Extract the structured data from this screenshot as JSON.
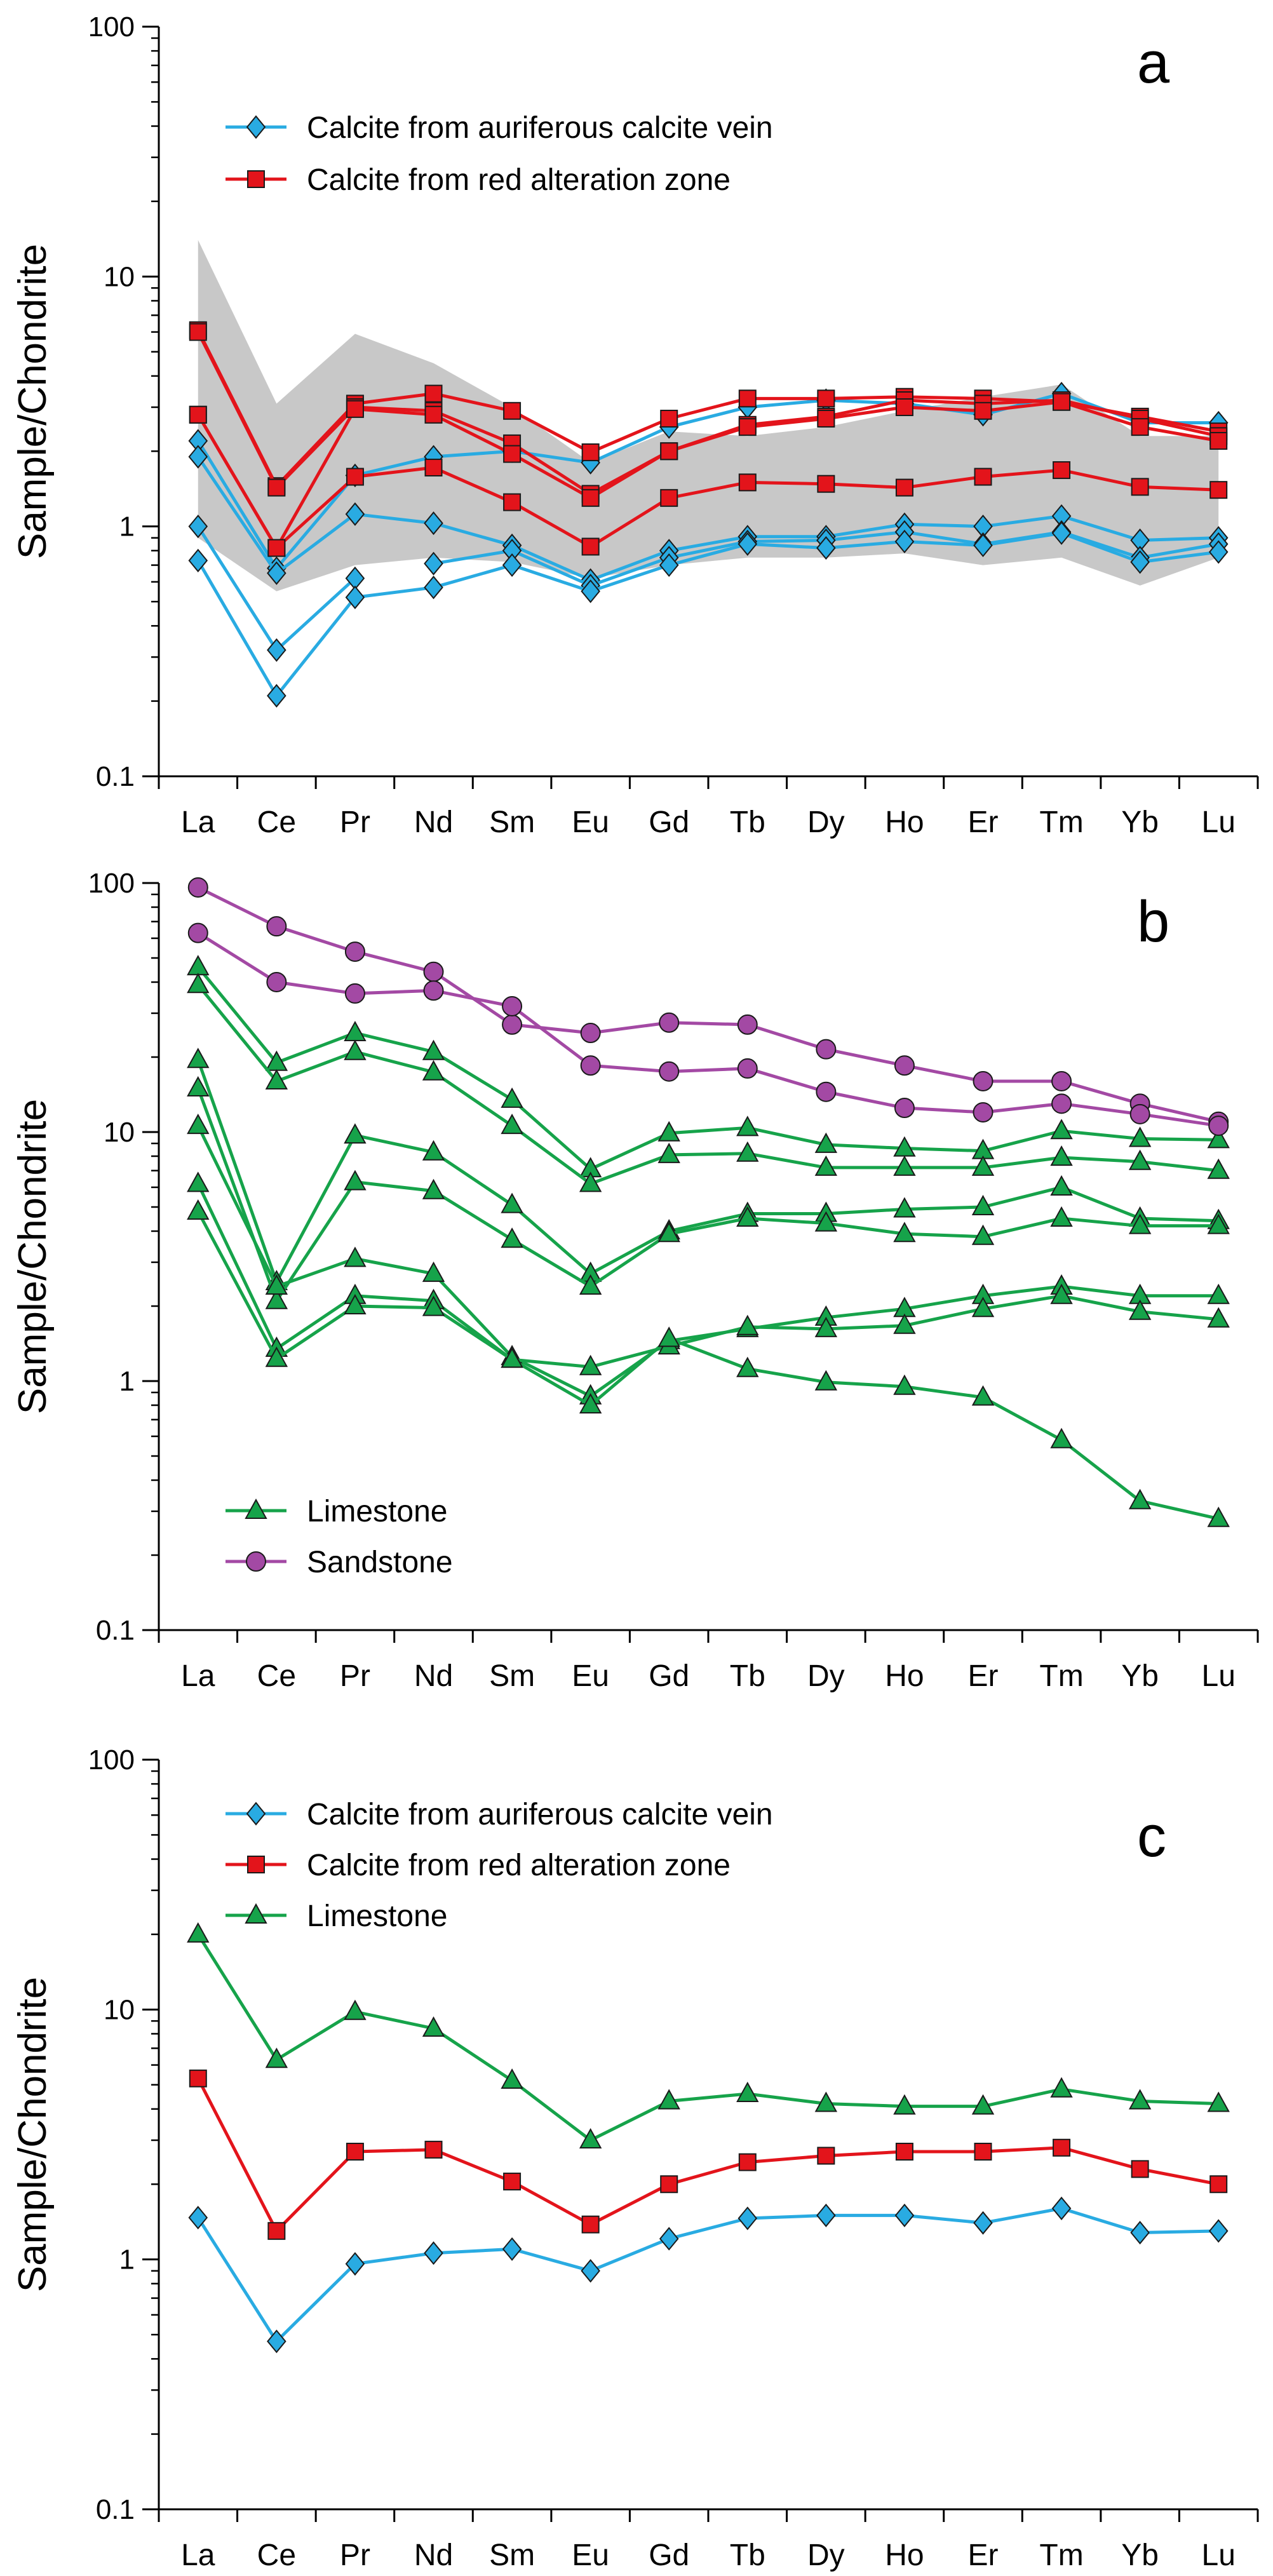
{
  "figure": {
    "panel_ids": [
      "a",
      "b",
      "c"
    ]
  },
  "styles": {
    "vein": {
      "line_color": "#29abe2",
      "marker_fill": "#29abe2",
      "marker": "diamond"
    },
    "red": {
      "line_color": "#e3141b",
      "marker_fill": "#e3141b",
      "marker": "square"
    },
    "limestone": {
      "line_color": "#16a34a",
      "marker_fill": "#16a34a",
      "marker": "triangle"
    },
    "sandstone": {
      "line_color": "#a349a4",
      "marker_fill": "#a349a4",
      "marker": "circle"
    },
    "envelope_color": "#c8c8c8"
  },
  "chart_data": [
    {
      "id": "a",
      "type": "line",
      "yscale": "log",
      "ylim": [
        0.1,
        100
      ],
      "ylabel": "Sample/Chondrite",
      "xlabel": "",
      "panel_label": "a",
      "y_tick_labels": [
        "0.1",
        "1",
        "10",
        "100"
      ],
      "categories": [
        "La",
        "Ce",
        "Pr",
        "Nd",
        "Sm",
        "Eu",
        "Gd",
        "Tb",
        "Dy",
        "Ho",
        "Er",
        "Tm",
        "Yb",
        "Lu"
      ],
      "legend": {
        "position": "top-left",
        "entries": [
          {
            "label": "Calcite from auriferous calcite vein",
            "style": "vein"
          },
          {
            "label": "Calcite from red alteration zone",
            "style": "red"
          }
        ]
      },
      "envelope": {
        "upper": [
          14,
          3.1,
          5.9,
          4.5,
          3.0,
          1.8,
          2.4,
          2.3,
          2.5,
          2.9,
          3.3,
          3.7,
          2.3,
          2.3
        ],
        "lower": [
          0.9,
          0.55,
          0.7,
          0.75,
          0.72,
          0.62,
          0.7,
          0.75,
          0.75,
          0.78,
          0.7,
          0.75,
          0.58,
          0.75
        ]
      },
      "series": [
        {
          "name": "vein-1",
          "style": "vein",
          "values": [
            2.2,
            0.68,
            1.6,
            1.9,
            2.0,
            1.8,
            2.5,
            3.0,
            3.2,
            3.1,
            2.8,
            3.4,
            2.6,
            2.6
          ]
        },
        {
          "name": "vein-2",
          "style": "vein",
          "values": [
            1.9,
            0.65,
            1.12,
            1.03,
            0.84,
            0.61,
            0.8,
            0.91,
            0.91,
            1.02,
            1.0,
            1.1,
            0.88,
            0.9
          ]
        },
        {
          "name": "vein-3",
          "style": "vein",
          "values": [
            1.0,
            0.32,
            0.62,
            null,
            null,
            null,
            null,
            null,
            null,
            null,
            null,
            null,
            null,
            null
          ]
        },
        {
          "name": "vein-4",
          "style": "vein",
          "values": [
            null,
            null,
            null,
            0.71,
            0.8,
            0.58,
            0.75,
            0.87,
            0.88,
            0.95,
            0.85,
            0.95,
            0.75,
            0.85
          ]
        },
        {
          "name": "vein-5",
          "style": "vein",
          "values": [
            0.73,
            0.21,
            0.52,
            0.57,
            0.7,
            0.55,
            0.7,
            0.85,
            0.82,
            0.87,
            0.84,
            0.94,
            0.72,
            0.79
          ]
        },
        {
          "name": "red-1",
          "style": "red",
          "values": [
            6.1,
            1.45,
            3.1,
            3.4,
            2.9,
            1.98,
            2.7,
            3.25,
            3.25,
            3.3,
            3.25,
            3.15,
            2.75,
            2.4
          ]
        },
        {
          "name": "red-2",
          "style": "red",
          "values": [
            6.0,
            1.43,
            3.0,
            2.9,
            2.15,
            1.35,
            2.0,
            2.55,
            2.75,
            3.2,
            3.1,
            3.2,
            2.7,
            2.3
          ]
        },
        {
          "name": "red-3",
          "style": "red",
          "values": [
            2.8,
            0.82,
            2.95,
            2.8,
            1.95,
            1.3,
            2.0,
            2.5,
            2.7,
            3.0,
            2.9,
            3.15,
            2.5,
            2.2
          ]
        },
        {
          "name": "red-4",
          "style": "red",
          "values": [
            2.8,
            0.82,
            1.58,
            1.72,
            1.25,
            0.83,
            1.3,
            1.5,
            1.48,
            1.43,
            1.58,
            1.68,
            1.44,
            1.4
          ]
        }
      ]
    },
    {
      "id": "b",
      "type": "line",
      "yscale": "log",
      "ylim": [
        0.1,
        100
      ],
      "ylabel": "Sample/Chondrite",
      "xlabel": "",
      "panel_label": "b",
      "y_tick_labels": [
        "0.1",
        "1",
        "10",
        "100"
      ],
      "categories": [
        "La",
        "Ce",
        "Pr",
        "Nd",
        "Sm",
        "Eu",
        "Gd",
        "Tb",
        "Dy",
        "Ho",
        "Er",
        "Tm",
        "Yb",
        "Lu"
      ],
      "legend": {
        "position": "bottom-left",
        "entries": [
          {
            "label": "Limestone",
            "style": "limestone"
          },
          {
            "label": "Sandstone",
            "style": "sandstone"
          }
        ]
      },
      "series": [
        {
          "name": "ls-1",
          "style": "limestone",
          "values": [
            46,
            19,
            25,
            21,
            13.5,
            7.1,
            9.9,
            10.4,
            8.9,
            8.6,
            8.4,
            10.1,
            9.4,
            9.3
          ]
        },
        {
          "name": "ls-2",
          "style": "limestone",
          "values": [
            39,
            16,
            21,
            17.4,
            10.6,
            6.2,
            8.1,
            8.2,
            7.2,
            7.2,
            7.2,
            7.9,
            7.6,
            7.0
          ]
        },
        {
          "name": "ls-3",
          "style": "limestone",
          "values": [
            19.5,
            2.5,
            9.7,
            8.3,
            5.1,
            2.7,
            4.0,
            4.7,
            4.7,
            4.9,
            5.0,
            6.0,
            4.5,
            4.4
          ]
        },
        {
          "name": "ls-4",
          "style": "limestone",
          "values": [
            15,
            2.1,
            6.3,
            5.8,
            3.7,
            2.4,
            3.9,
            4.5,
            4.3,
            3.9,
            3.8,
            4.5,
            4.2,
            4.2
          ]
        },
        {
          "name": "ls-5",
          "style": "limestone",
          "values": [
            10.6,
            2.4,
            3.1,
            2.7,
            1.25,
            0.87,
            1.45,
            1.62,
            1.8,
            1.95,
            2.2,
            2.4,
            2.2,
            2.2
          ]
        },
        {
          "name": "ls-6",
          "style": "limestone",
          "values": [
            6.2,
            1.35,
            2.2,
            2.1,
            1.22,
            1.14,
            1.38,
            1.65,
            1.62,
            1.67,
            1.95,
            2.2,
            1.9,
            1.77
          ]
        },
        {
          "name": "ls-7",
          "style": "limestone",
          "values": [
            4.8,
            1.23,
            2.0,
            1.97,
            1.22,
            0.8,
            1.48,
            1.12,
            0.99,
            0.95,
            0.86,
            0.58,
            0.33,
            0.28
          ]
        },
        {
          "name": "ss-1",
          "style": "sandstone",
          "values": [
            96,
            67,
            53,
            44,
            27,
            25,
            27.5,
            27,
            21.5,
            18.5,
            16,
            16,
            13,
            11
          ]
        },
        {
          "name": "ss-2",
          "style": "sandstone",
          "values": [
            63,
            40,
            36,
            37,
            32,
            18.5,
            17.5,
            18,
            14.5,
            12.5,
            12,
            13,
            11.8,
            10.6
          ]
        }
      ]
    },
    {
      "id": "c",
      "type": "line",
      "yscale": "log",
      "ylim": [
        0.1,
        100
      ],
      "ylabel": "Sample/Chondrite",
      "xlabel": "",
      "panel_label": "c",
      "y_tick_labels": [
        "0.1",
        "1",
        "10",
        "100"
      ],
      "categories": [
        "La",
        "Ce",
        "Pr",
        "Nd",
        "Sm",
        "Eu",
        "Gd",
        "Tb",
        "Dy",
        "Ho",
        "Er",
        "Tm",
        "Yb",
        "Lu"
      ],
      "legend": {
        "position": "top-left",
        "entries": [
          {
            "label": "Calcite from auriferous calcite vein",
            "style": "vein"
          },
          {
            "label": "Calcite from red alteration zone",
            "style": "red"
          },
          {
            "label": "Limestone",
            "style": "limestone"
          }
        ]
      },
      "series": [
        {
          "name": "avg-limestone",
          "style": "limestone",
          "values": [
            20,
            6.3,
            9.8,
            8.4,
            5.2,
            3.0,
            4.3,
            4.6,
            4.2,
            4.1,
            4.1,
            4.8,
            4.3,
            4.2
          ]
        },
        {
          "name": "avg-red",
          "style": "red",
          "values": [
            5.3,
            1.3,
            2.7,
            2.75,
            2.05,
            1.38,
            2.0,
            2.45,
            2.6,
            2.7,
            2.7,
            2.8,
            2.3,
            2.0
          ]
        },
        {
          "name": "avg-vein",
          "style": "vein",
          "values": [
            1.47,
            0.47,
            0.96,
            1.06,
            1.1,
            0.9,
            1.21,
            1.46,
            1.5,
            1.5,
            1.4,
            1.6,
            1.28,
            1.3
          ]
        }
      ]
    }
  ]
}
